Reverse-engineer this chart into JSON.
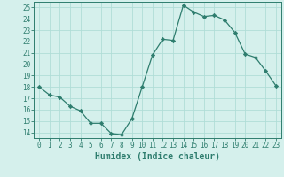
{
  "x": [
    0,
    1,
    2,
    3,
    4,
    5,
    6,
    7,
    8,
    9,
    10,
    11,
    12,
    13,
    14,
    15,
    16,
    17,
    18,
    19,
    20,
    21,
    22,
    23
  ],
  "y": [
    18,
    17.3,
    17.1,
    16.3,
    15.9,
    14.8,
    14.8,
    13.9,
    13.8,
    15.2,
    18.0,
    20.8,
    22.2,
    22.1,
    25.2,
    24.6,
    24.2,
    24.3,
    23.9,
    22.8,
    20.9,
    20.6,
    19.4,
    18.1
  ],
  "line_color": "#2e7d6e",
  "marker": "D",
  "marker_size": 2.2,
  "bg_color": "#d5f0ec",
  "grid_color": "#b0ddd7",
  "axis_color": "#2e7d6e",
  "xlabel": "Humidex (Indice chaleur)",
  "xlabel_fontsize": 7,
  "ylim": [
    13.5,
    25.5
  ],
  "yticks": [
    14,
    15,
    16,
    17,
    18,
    19,
    20,
    21,
    22,
    23,
    24,
    25
  ],
  "xticks": [
    0,
    1,
    2,
    3,
    4,
    5,
    6,
    7,
    8,
    9,
    10,
    11,
    12,
    13,
    14,
    15,
    16,
    17,
    18,
    19,
    20,
    21,
    22,
    23
  ],
  "tick_fontsize": 5.5,
  "xlim": [
    -0.5,
    23.5
  ]
}
